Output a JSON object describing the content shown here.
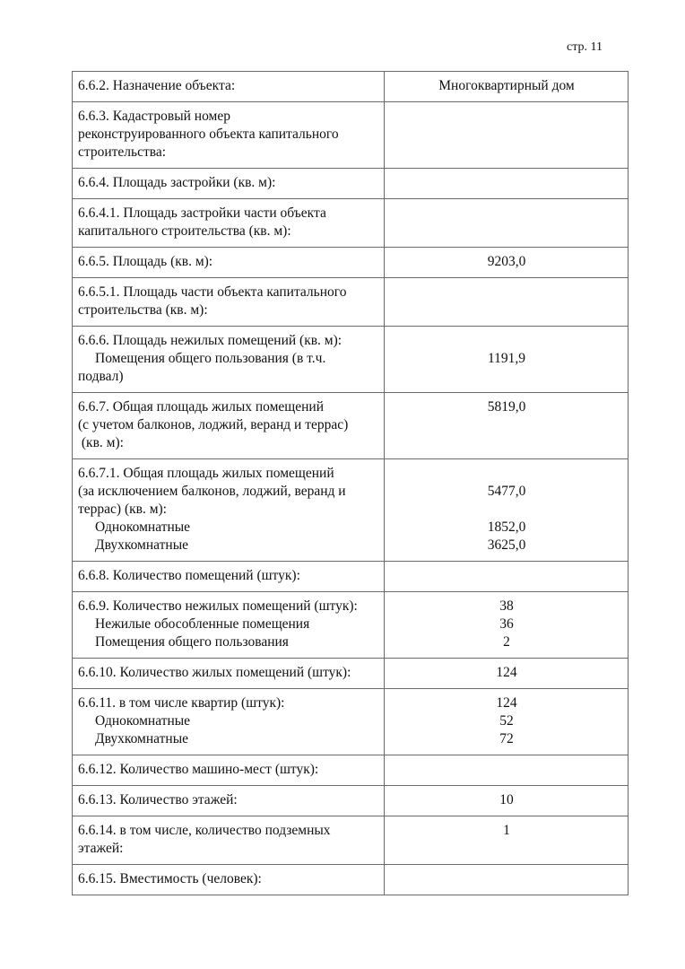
{
  "page_number": "стр. 11",
  "rows": [
    {
      "left": [
        {
          "t": "6.6.2. Назначение объекта:"
        }
      ],
      "right": [
        "Многоквартирный дом"
      ]
    },
    {
      "left": [
        {
          "t": "6.6.3. Кадастровый номер"
        },
        {
          "t": "реконструированного объекта капитального"
        },
        {
          "t": "строительства:"
        }
      ],
      "right": []
    },
    {
      "left": [
        {
          "t": "6.6.4. Площадь застройки (кв. м):"
        }
      ],
      "right": []
    },
    {
      "left": [
        {
          "t": "6.6.4.1. Площадь застройки части объекта"
        },
        {
          "t": "капитального строительства (кв. м):"
        }
      ],
      "right": []
    },
    {
      "left": [
        {
          "t": "6.6.5. Площадь (кв. м):"
        }
      ],
      "right": [
        "9203,0"
      ]
    },
    {
      "left": [
        {
          "t": "6.6.5.1. Площадь части объекта капитального"
        },
        {
          "t": "строительства (кв. м):"
        }
      ],
      "right": []
    },
    {
      "left": [
        {
          "t": "6.6.6. Площадь нежилых помещений (кв. м):"
        },
        {
          "t": "Помещения общего пользования (в т.ч.",
          "i": true
        },
        {
          "t": "подвал)"
        }
      ],
      "right": [
        "",
        "1191,9"
      ]
    },
    {
      "left": [
        {
          "t": "6.6.7. Общая площадь жилых помещений"
        },
        {
          "t": "(с учетом балконов, лоджий, веранд и террас)"
        },
        {
          "t": " (кв. м):"
        }
      ],
      "right": [
        "5819,0"
      ]
    },
    {
      "left": [
        {
          "t": "6.6.7.1. Общая площадь жилых помещений"
        },
        {
          "t": "(за исключением балконов, лоджий, веранд и"
        },
        {
          "t": "террас) (кв. м):"
        },
        {
          "t": "Однокомнатные",
          "i": true
        },
        {
          "t": "Двухкомнатные",
          "i": true
        }
      ],
      "right": [
        "",
        "5477,0",
        "",
        "1852,0",
        "3625,0"
      ]
    },
    {
      "left": [
        {
          "t": "6.6.8. Количество помещений (штук):"
        }
      ],
      "right": []
    },
    {
      "left": [
        {
          "t": "6.6.9. Количество нежилых помещений (штук):"
        },
        {
          "t": "Нежилые обособленные помещения",
          "i": true
        },
        {
          "t": "Помещения общего пользования",
          "i": true
        }
      ],
      "right": [
        "38",
        "36",
        "2"
      ]
    },
    {
      "left": [
        {
          "t": "6.6.10. Количество жилых помещений (штук):"
        }
      ],
      "right": [
        "124"
      ]
    },
    {
      "left": [
        {
          "t": "6.6.11. в том числе квартир (штук):"
        },
        {
          "t": "Однокомнатные",
          "i": true
        },
        {
          "t": "Двухкомнатные",
          "i": true
        }
      ],
      "right": [
        "124",
        "52",
        "72"
      ]
    },
    {
      "left": [
        {
          "t": "6.6.12. Количество машино-мест (штук):"
        }
      ],
      "right": []
    },
    {
      "left": [
        {
          "t": "6.6.13. Количество этажей:"
        }
      ],
      "right": [
        "10"
      ]
    },
    {
      "left": [
        {
          "t": "6.6.14. в том числе, количество подземных"
        },
        {
          "t": "этажей:"
        }
      ],
      "right": [
        "1"
      ]
    },
    {
      "left": [
        {
          "t": "6.6.15. Вместимость (человек):"
        }
      ],
      "right": []
    }
  ]
}
